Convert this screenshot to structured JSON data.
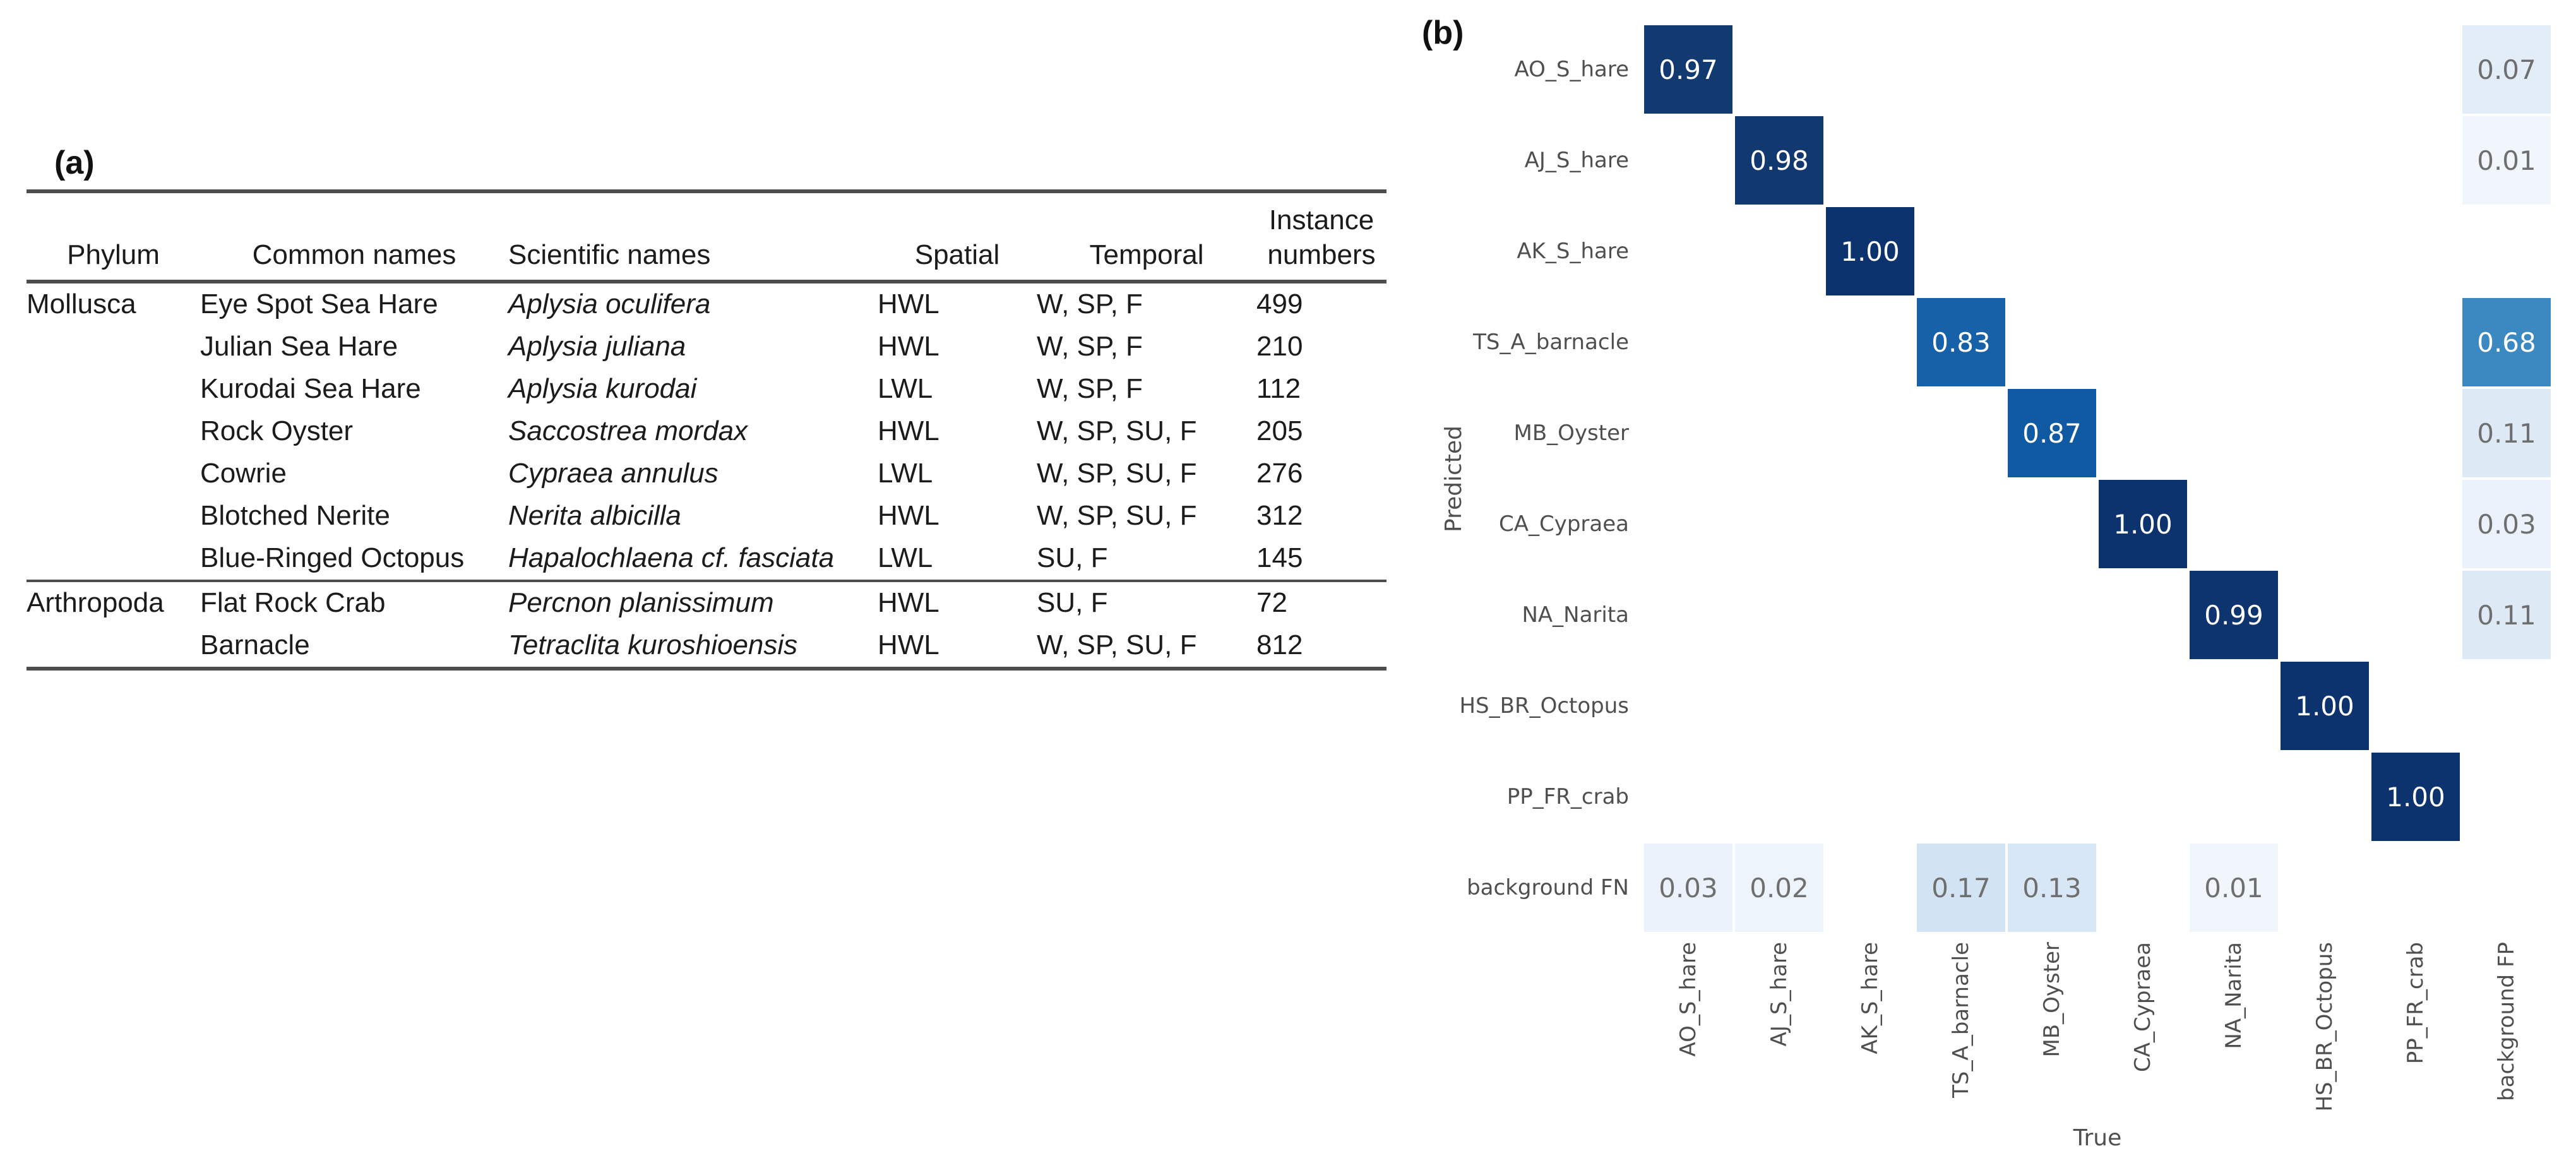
{
  "panel_a": {
    "label": "(a)",
    "table": {
      "header_top_right": "Instance",
      "header": [
        "Phylum",
        "Common names",
        "Scientific names",
        "Spatial",
        "Temporal",
        "numbers"
      ],
      "rows": [
        {
          "phylum": "Mollusca",
          "common": "Eye Spot Sea Hare",
          "scientific": "Aplysia oculifera",
          "spatial": "HWL",
          "temporal": "W, SP, F",
          "instances": "499"
        },
        {
          "phylum": "",
          "common": "Julian Sea Hare",
          "scientific": "Aplysia juliana",
          "spatial": "HWL",
          "temporal": "W, SP, F",
          "instances": "210"
        },
        {
          "phylum": "",
          "common": "Kurodai Sea Hare",
          "scientific": "Aplysia kurodai",
          "spatial": "LWL",
          "temporal": "W, SP, F",
          "instances": "112"
        },
        {
          "phylum": "",
          "common": "Rock Oyster",
          "scientific": "Saccostrea mordax",
          "spatial": "HWL",
          "temporal": "W, SP, SU, F",
          "instances": "205"
        },
        {
          "phylum": "",
          "common": "Cowrie",
          "scientific": "Cypraea annulus",
          "spatial": "LWL",
          "temporal": "W, SP, SU, F",
          "instances": "276"
        },
        {
          "phylum": "",
          "common": "Blotched Nerite",
          "scientific": "Nerita albicilla",
          "spatial": "HWL",
          "temporal": "W, SP, SU, F",
          "instances": "312"
        },
        {
          "phylum": "",
          "common": "Blue-Ringed Octopus",
          "scientific": "Hapalochlaena cf. fasciata",
          "spatial": "LWL",
          "temporal": "SU, F",
          "instances": "145"
        },
        {
          "phylum": "Arthropoda",
          "common": "Flat Rock Crab",
          "scientific": "Percnon planissimum",
          "spatial": "HWL",
          "temporal": "SU, F",
          "instances": "72"
        },
        {
          "phylum": "",
          "common": "Barnacle",
          "scientific": "Tetraclita kuroshioensis",
          "spatial": "HWL",
          "temporal": "W, SP, SU, F",
          "instances": "812"
        }
      ],
      "section_break_after_row": 7
    }
  },
  "panel_b": {
    "label": "(b)"
  },
  "chart_data": {
    "type": "heatmap",
    "title": "",
    "xlabel": "True",
    "ylabel": "Predicted",
    "x_categories": [
      "AO_S_hare",
      "AJ_S_hare",
      "AK_S_hare",
      "TS_A_barnacle",
      "MB_Oyster",
      "CA_Cypraea",
      "NA_Narita",
      "HS_BR_Octopus",
      "PP_FR_crab",
      "background FP"
    ],
    "y_categories": [
      "AO_S_hare",
      "AJ_S_hare",
      "AK_S_hare",
      "TS_A_barnacle",
      "MB_Oyster",
      "CA_Cypraea",
      "NA_Narita",
      "HS_BR_Octopus",
      "PP_FR_crab",
      "background FN"
    ],
    "values": [
      [
        0.97,
        null,
        null,
        null,
        null,
        null,
        null,
        null,
        null,
        0.07
      ],
      [
        null,
        0.98,
        null,
        null,
        null,
        null,
        null,
        null,
        null,
        0.01
      ],
      [
        null,
        null,
        1.0,
        null,
        null,
        null,
        null,
        null,
        null,
        null
      ],
      [
        null,
        null,
        null,
        0.83,
        null,
        null,
        null,
        null,
        null,
        0.68
      ],
      [
        null,
        null,
        null,
        null,
        0.87,
        null,
        null,
        null,
        null,
        0.11
      ],
      [
        null,
        null,
        null,
        null,
        null,
        1.0,
        null,
        null,
        null,
        0.03
      ],
      [
        null,
        null,
        null,
        null,
        null,
        null,
        0.99,
        null,
        null,
        0.11
      ],
      [
        null,
        null,
        null,
        null,
        null,
        null,
        null,
        1.0,
        null,
        null
      ],
      [
        null,
        null,
        null,
        null,
        null,
        null,
        null,
        null,
        1.0,
        null
      ],
      [
        0.03,
        0.02,
        null,
        0.17,
        0.13,
        null,
        0.01,
        null,
        null,
        null
      ]
    ],
    "value_format": "2dp",
    "colormap": "Blues",
    "grid": false,
    "legend": "none",
    "value_colors": {
      "1.00": "#0d336e",
      "0.99": "#0e346f",
      "0.98": "#113970",
      "0.97": "#123a71",
      "0.87": "#1059a3",
      "0.83": "#1761a9",
      "0.68": "#3c89c2",
      "0.17": "#d2e3f3",
      "0.13": "#d8e7f5",
      "0.11": "#dee9f6",
      "0.07": "#e3edf8",
      "0.03": "#ebf2fb",
      "0.02": "#eef4fb",
      "0.01": "#f0f6fc"
    },
    "text_color_dark_cells": "#ffffff",
    "text_color_light_cells": "#6f6f6f",
    "white_text_threshold": 0.5
  }
}
